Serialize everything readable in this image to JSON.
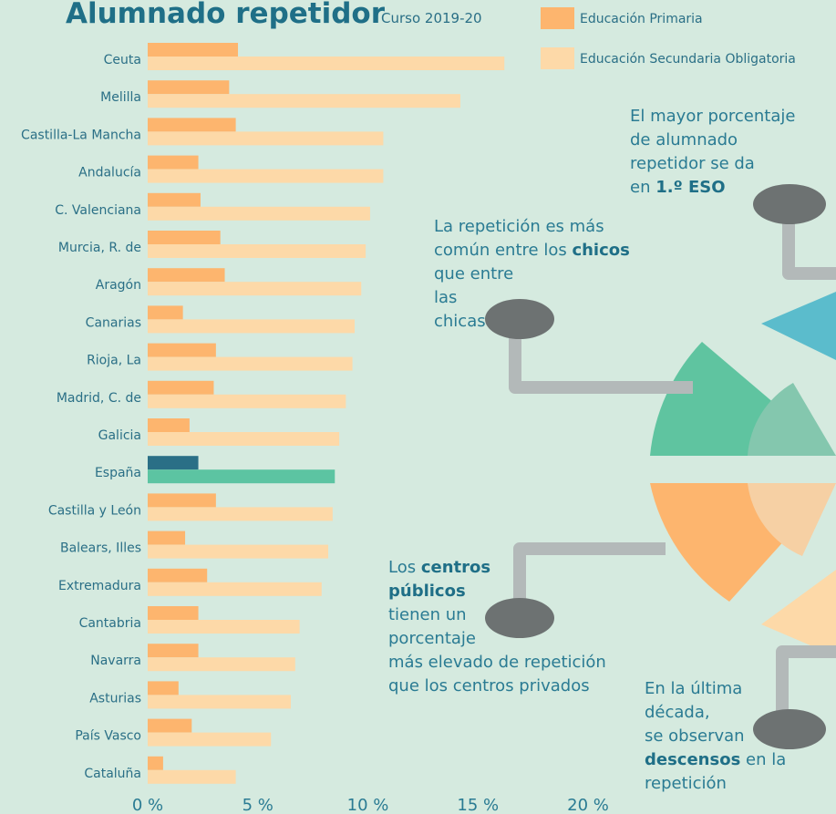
{
  "chart_data": {
    "type": "bar",
    "orientation": "horizontal",
    "title": "Alumnado repetidor",
    "subtitle": "Curso 2019-20",
    "categories": [
      "Ceuta",
      "Melilla",
      "Castilla-La Mancha",
      "Andalucía",
      "C. Valenciana",
      "Murcia, R. de",
      "Aragón",
      "Canarias",
      "Rioja, La",
      "Madrid, C. de",
      "Galicia",
      "España",
      "Castilla y León",
      "Balears, Illes",
      "Extremadura",
      "Cantabria",
      "Navarra",
      "Asturias",
      "País Vasco",
      "Cataluña"
    ],
    "series": [
      {
        "name": "Educación Primaria",
        "color": "#fdb56e",
        "highlight_color": "#2a6f86",
        "values": [
          4.1,
          3.7,
          4.0,
          2.3,
          2.4,
          3.3,
          3.5,
          1.6,
          3.1,
          3.0,
          1.9,
          2.3,
          3.1,
          1.7,
          2.7,
          2.3,
          2.3,
          1.4,
          2.0,
          0.7
        ]
      },
      {
        "name": "Educación Secundaria Obligatoria",
        "color": "#fdd9a8",
        "highlight_color": "#5cc4a2",
        "values": [
          16.2,
          14.2,
          10.7,
          10.7,
          10.1,
          9.9,
          9.7,
          9.4,
          9.3,
          9.0,
          8.7,
          8.5,
          8.4,
          8.2,
          7.9,
          6.9,
          6.7,
          6.5,
          5.6,
          4.0
        ]
      }
    ],
    "highlight_index": 11,
    "xlim": [
      0,
      20
    ],
    "xticks": [
      {
        "value": 0,
        "label": "0 %"
      },
      {
        "value": 5,
        "label": "5 %"
      },
      {
        "value": 10,
        "label": "10 %"
      },
      {
        "value": 15,
        "label": "15 %"
      },
      {
        "value": 20,
        "label": "20 %"
      }
    ],
    "annotations": [
      {
        "lines": [
          [
            {
              "text": "El mayor porcentaje"
            }
          ],
          [
            {
              "text": "de alumnado"
            }
          ],
          [
            {
              "text": "repetidor se da"
            }
          ],
          [
            {
              "text": "en "
            },
            {
              "text": "1.º ESO",
              "bold": true
            }
          ]
        ]
      },
      {
        "lines": [
          [
            {
              "text": "La repetición es más"
            }
          ],
          [
            {
              "text": "común entre los "
            },
            {
              "text": "chicos",
              "bold": true
            }
          ],
          [
            {
              "text": "que entre"
            }
          ],
          [
            {
              "text": "las"
            }
          ],
          [
            {
              "text": "chicas"
            }
          ]
        ]
      },
      {
        "lines": [
          [
            {
              "text": "Los "
            },
            {
              "text": "centros",
              "bold": true
            }
          ],
          [
            {
              "text": "públicos",
              "bold": true
            }
          ],
          [
            {
              "text": "tienen un"
            }
          ],
          [
            {
              "text": "porcentaje"
            }
          ],
          [
            {
              "text": "más elevado de repetición"
            }
          ],
          [
            {
              "text": "que los centros privados"
            }
          ]
        ]
      },
      {
        "lines": [
          [
            {
              "text": "En la última"
            }
          ],
          [
            {
              "text": "década,"
            }
          ],
          [
            {
              "text": "se observan"
            }
          ],
          [
            {
              "text": "descensos",
              "bold": true
            },
            {
              "text": " en la"
            }
          ],
          [
            {
              "text": "repetición"
            }
          ]
        ]
      }
    ]
  }
}
